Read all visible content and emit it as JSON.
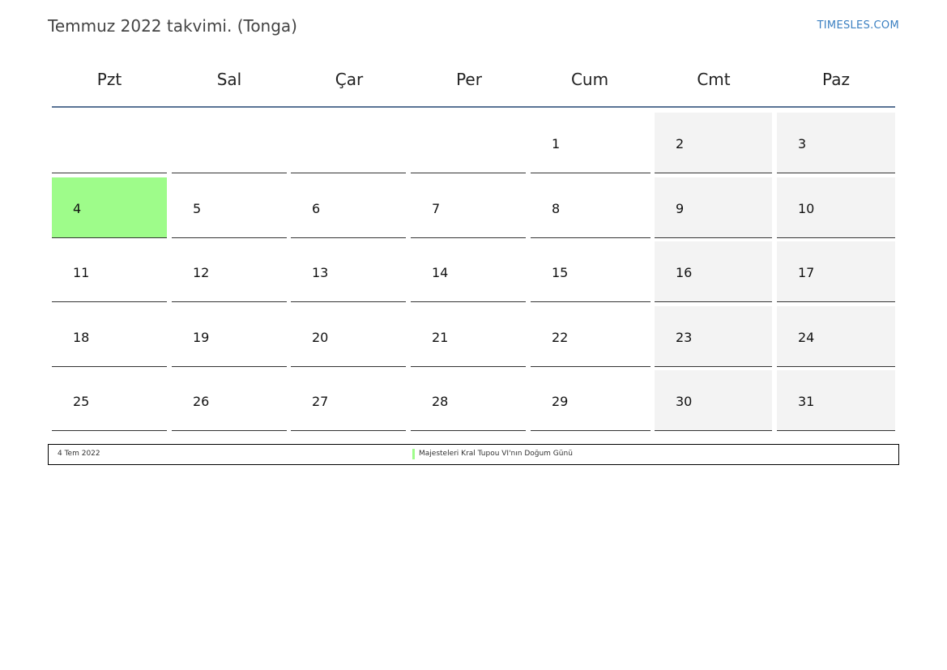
{
  "header": {
    "title": "Temmuz 2022 takvimi. (Tonga)",
    "brand": "TIMESLES.COM"
  },
  "calendar": {
    "day_names": [
      "Pzt",
      "Sal",
      "Çar",
      "Per",
      "Cum",
      "Cmt",
      "Paz"
    ],
    "weeks": [
      [
        "",
        "",
        "",
        "",
        "1",
        "2",
        "3"
      ],
      [
        "4",
        "5",
        "6",
        "7",
        "8",
        "9",
        "10"
      ],
      [
        "11",
        "12",
        "13",
        "14",
        "15",
        "16",
        "17"
      ],
      [
        "18",
        "19",
        "20",
        "21",
        "22",
        "23",
        "24"
      ],
      [
        "25",
        "26",
        "27",
        "28",
        "29",
        "30",
        "31"
      ]
    ],
    "holiday_day": "4",
    "colors": {
      "holiday": "#9efc8a",
      "weekend": "#f3f3f3",
      "header_line": "#5a7495",
      "brand": "#3a7fc1"
    }
  },
  "legend": {
    "date": "4 Tem 2022",
    "holiday_name": "Majesteleri Kral Tupou VI'nın Doğum Günü"
  }
}
